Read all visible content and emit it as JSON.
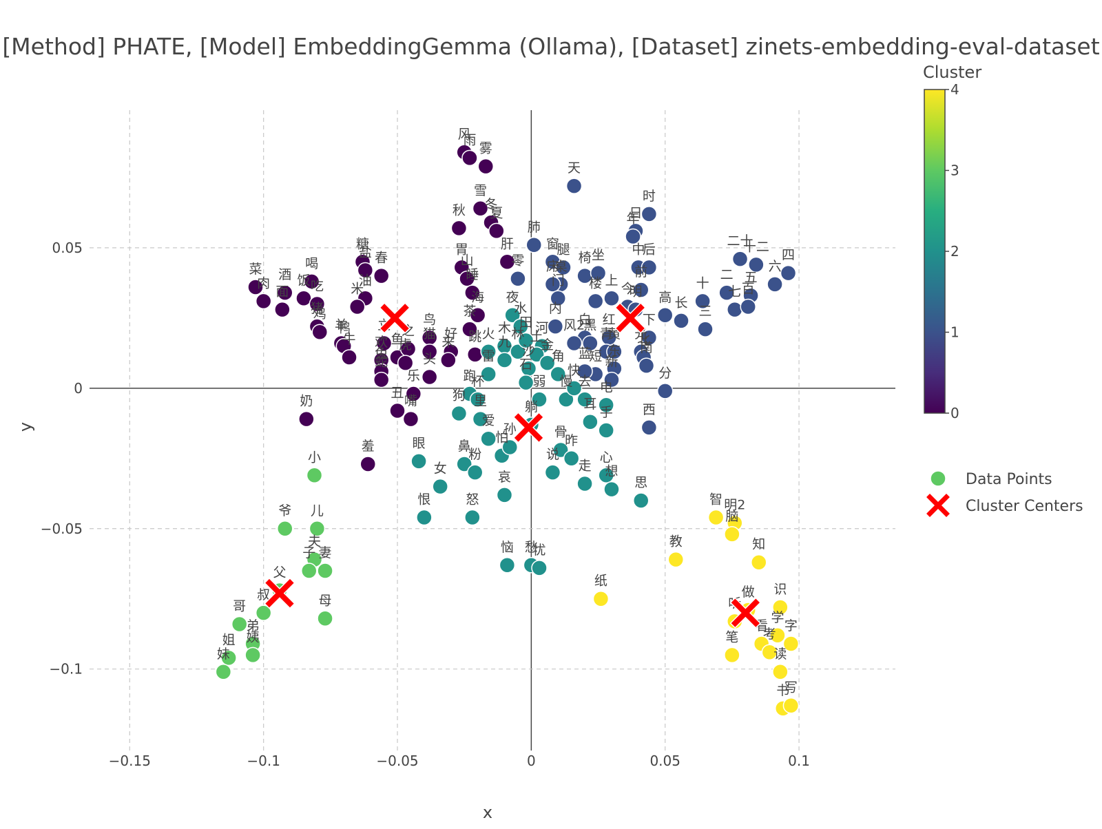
{
  "chart_data": {
    "type": "scatter",
    "title": "[Method] PHATE, [Model] EmbeddingGemma (Ollama), [Dataset] zinets-embedding-eval-dataset",
    "xlabel": "x",
    "ylabel": "y",
    "xlim": [
      -0.165,
      0.136
    ],
    "ylim": [
      -0.129,
      0.099
    ],
    "x_ticks": [
      -0.15,
      -0.1,
      -0.05,
      0,
      0.05,
      0.1
    ],
    "x_tick_labels": [
      "−0.15",
      "−0.1",
      "−0.05",
      "0",
      "0.05",
      "0.1"
    ],
    "y_ticks": [
      -0.1,
      -0.05,
      0,
      0.05
    ],
    "y_tick_labels": [
      "−0.1",
      "−0.05",
      "0",
      "0.05"
    ],
    "grid": true,
    "colorbar": {
      "title": "Cluster",
      "min": 0,
      "max": 4,
      "ticks": [
        0,
        1,
        2,
        3,
        4
      ],
      "tick_labels": [
        "0",
        "1",
        "2",
        "3",
        "4"
      ],
      "colorscale": [
        "#440154",
        "#3b528b",
        "#21918c",
        "#5ec962",
        "#fde725"
      ]
    },
    "legend": {
      "placement": "right",
      "entries": [
        {
          "name": "Data Points",
          "color": "#5ec962",
          "marker": "circle"
        },
        {
          "name": "Cluster Centers",
          "color": "#ff0000",
          "marker": "x"
        }
      ]
    },
    "centers": [
      {
        "cluster": 0,
        "x": -0.051,
        "y": 0.025
      },
      {
        "cluster": 1,
        "x": 0.037,
        "y": 0.025
      },
      {
        "cluster": 2,
        "x": -0.001,
        "y": -0.014
      },
      {
        "cluster": 3,
        "x": -0.094,
        "y": -0.073
      },
      {
        "cluster": 4,
        "x": 0.08,
        "y": -0.08
      }
    ],
    "points": [
      {
        "label": "风",
        "x": -0.025,
        "y": 0.084,
        "c": 0
      },
      {
        "label": "雨",
        "x": -0.023,
        "y": 0.082,
        "c": 0
      },
      {
        "label": "雾",
        "x": -0.017,
        "y": 0.079,
        "c": 0
      },
      {
        "label": "雪",
        "x": -0.019,
        "y": 0.064,
        "c": 0
      },
      {
        "label": "冬",
        "x": -0.015,
        "y": 0.059,
        "c": 0
      },
      {
        "label": "夏",
        "x": -0.013,
        "y": 0.056,
        "c": 0
      },
      {
        "label": "秋",
        "x": -0.027,
        "y": 0.057,
        "c": 0
      },
      {
        "label": "胃",
        "x": -0.026,
        "y": 0.043,
        "c": 0
      },
      {
        "label": "山",
        "x": -0.024,
        "y": 0.039,
        "c": 0
      },
      {
        "label": "睡",
        "x": -0.022,
        "y": 0.034,
        "c": 0
      },
      {
        "label": "海",
        "x": -0.02,
        "y": 0.026,
        "c": 0
      },
      {
        "label": "茶",
        "x": -0.023,
        "y": 0.021,
        "c": 0
      },
      {
        "label": "肝",
        "x": -0.009,
        "y": 0.045,
        "c": 0
      },
      {
        "label": "糖",
        "x": -0.063,
        "y": 0.045,
        "c": 0
      },
      {
        "label": "盐",
        "x": -0.062,
        "y": 0.042,
        "c": 0
      },
      {
        "label": "油",
        "x": -0.062,
        "y": 0.032,
        "c": 0
      },
      {
        "label": "春",
        "x": -0.056,
        "y": 0.04,
        "c": 0
      },
      {
        "label": "米",
        "x": -0.065,
        "y": 0.029,
        "c": 0
      },
      {
        "label": "菜",
        "x": -0.103,
        "y": 0.036,
        "c": 0
      },
      {
        "label": "肉",
        "x": -0.1,
        "y": 0.031,
        "c": 0
      },
      {
        "label": "酒",
        "x": -0.092,
        "y": 0.034,
        "c": 0
      },
      {
        "label": "面",
        "x": -0.093,
        "y": 0.028,
        "c": 0
      },
      {
        "label": "喝",
        "x": -0.082,
        "y": 0.038,
        "c": 0
      },
      {
        "label": "饭",
        "x": -0.085,
        "y": 0.032,
        "c": 0
      },
      {
        "label": "吃",
        "x": -0.08,
        "y": 0.03,
        "c": 0
      },
      {
        "label": "猪",
        "x": -0.08,
        "y": 0.022,
        "c": 0
      },
      {
        "label": "鸡",
        "x": -0.079,
        "y": 0.02,
        "c": 0
      },
      {
        "label": "羊",
        "x": -0.071,
        "y": 0.016,
        "c": 0
      },
      {
        "label": "鸭",
        "x": -0.07,
        "y": 0.015,
        "c": 0
      },
      {
        "label": "牛",
        "x": -0.068,
        "y": 0.011,
        "c": 0
      },
      {
        "label": "鸟",
        "x": -0.038,
        "y": 0.018,
        "c": 0
      },
      {
        "label": "猫",
        "x": -0.038,
        "y": 0.013,
        "c": 0
      },
      {
        "label": "头",
        "x": -0.038,
        "y": 0.004,
        "c": 0
      },
      {
        "label": "好",
        "x": -0.03,
        "y": 0.013,
        "c": 0
      },
      {
        "label": "来",
        "x": -0.031,
        "y": 0.01,
        "c": 0
      },
      {
        "label": "跳",
        "x": -0.021,
        "y": 0.012,
        "c": 0
      },
      {
        "label": "立",
        "x": -0.055,
        "y": 0.016,
        "c": 0
      },
      {
        "label": "鱼",
        "x": -0.05,
        "y": 0.011,
        "c": 0
      },
      {
        "label": "之",
        "x": -0.046,
        "y": 0.014,
        "c": 0
      },
      {
        "label": "虎",
        "x": -0.047,
        "y": 0.009,
        "c": 0
      },
      {
        "label": "欢",
        "x": -0.056,
        "y": 0.01,
        "c": 0
      },
      {
        "label": "兔",
        "x": -0.056,
        "y": 0.006,
        "c": 0
      },
      {
        "label": "蛇",
        "x": -0.056,
        "y": 0.003,
        "c": 0
      },
      {
        "label": "乐",
        "x": -0.044,
        "y": -0.002,
        "c": 0
      },
      {
        "label": "丑",
        "x": -0.05,
        "y": -0.008,
        "c": 0
      },
      {
        "label": "嘴",
        "x": -0.045,
        "y": -0.011,
        "c": 0
      },
      {
        "label": "奶",
        "x": -0.084,
        "y": -0.011,
        "c": 0
      },
      {
        "label": "羞",
        "x": -0.061,
        "y": -0.027,
        "c": 0
      },
      {
        "label": "天",
        "x": 0.016,
        "y": 0.072,
        "c": 1
      },
      {
        "label": "时",
        "x": 0.044,
        "y": 0.062,
        "c": 1
      },
      {
        "label": "日",
        "x": 0.039,
        "y": 0.056,
        "c": 1
      },
      {
        "label": "年",
        "x": 0.038,
        "y": 0.054,
        "c": 1
      },
      {
        "label": "中",
        "x": 0.04,
        "y": 0.043,
        "c": 1
      },
      {
        "label": "后",
        "x": 0.044,
        "y": 0.043,
        "c": 1
      },
      {
        "label": "前",
        "x": 0.041,
        "y": 0.035,
        "c": 1
      },
      {
        "label": "肺",
        "x": 0.001,
        "y": 0.051,
        "c": 1
      },
      {
        "label": "窗",
        "x": 0.008,
        "y": 0.045,
        "c": 1
      },
      {
        "label": "腿",
        "x": 0.012,
        "y": 0.043,
        "c": 1
      },
      {
        "label": "椅",
        "x": 0.02,
        "y": 0.04,
        "c": 1
      },
      {
        "label": "坐",
        "x": 0.025,
        "y": 0.041,
        "c": 1
      },
      {
        "label": "桌",
        "x": 0.011,
        "y": 0.037,
        "c": 1
      },
      {
        "label": "床",
        "x": 0.008,
        "y": 0.037,
        "c": 1
      },
      {
        "label": "零",
        "x": -0.005,
        "y": 0.039,
        "c": 1
      },
      {
        "label": "楼",
        "x": 0.024,
        "y": 0.031,
        "c": 1
      },
      {
        "label": "上",
        "x": 0.03,
        "y": 0.032,
        "c": 1
      },
      {
        "label": "门",
        "x": 0.01,
        "y": 0.032,
        "c": 1
      },
      {
        "label": "内",
        "x": 0.009,
        "y": 0.022,
        "c": 1
      },
      {
        "label": "今",
        "x": 0.036,
        "y": 0.029,
        "c": 1
      },
      {
        "label": "明",
        "x": 0.039,
        "y": 0.028,
        "c": 1
      },
      {
        "label": "高",
        "x": 0.05,
        "y": 0.026,
        "c": 1
      },
      {
        "label": "长",
        "x": 0.056,
        "y": 0.024,
        "c": 1
      },
      {
        "label": "下",
        "x": 0.044,
        "y": 0.018,
        "c": 1
      },
      {
        "label": "白",
        "x": 0.02,
        "y": 0.018,
        "c": 1
      },
      {
        "label": "黑",
        "x": 0.022,
        "y": 0.016,
        "c": 1
      },
      {
        "label": "红",
        "x": 0.029,
        "y": 0.018,
        "c": 1
      },
      {
        "label": "光",
        "x": 0.041,
        "y": 0.013,
        "c": 1
      },
      {
        "label": "风2",
        "x": 0.016,
        "y": 0.016,
        "c": 1
      },
      {
        "label": "青",
        "x": 0.028,
        "y": 0.013,
        "c": 1
      },
      {
        "label": "黄",
        "x": 0.031,
        "y": 0.013,
        "c": 1
      },
      {
        "label": "北",
        "x": 0.042,
        "y": 0.011,
        "c": 1
      },
      {
        "label": "南",
        "x": 0.043,
        "y": 0.008,
        "c": 1
      },
      {
        "label": "东",
        "x": 0.031,
        "y": 0.007,
        "c": 1
      },
      {
        "label": "短",
        "x": 0.024,
        "y": 0.005,
        "c": 1
      },
      {
        "label": "新",
        "x": 0.03,
        "y": 0.003,
        "c": 1
      },
      {
        "label": "蓝",
        "x": 0.02,
        "y": 0.006,
        "c": 1
      },
      {
        "label": "分",
        "x": 0.05,
        "y": -0.001,
        "c": 1
      },
      {
        "label": "西",
        "x": 0.044,
        "y": -0.014,
        "c": 1
      },
      {
        "label": "十",
        "x": 0.064,
        "y": 0.031,
        "c": 1
      },
      {
        "label": "三",
        "x": 0.065,
        "y": 0.021,
        "c": 1
      },
      {
        "label": "二十",
        "x": 0.078,
        "y": 0.046,
        "c": 1
      },
      {
        "label": "十二",
        "x": 0.084,
        "y": 0.044,
        "c": 1
      },
      {
        "label": "六",
        "x": 0.091,
        "y": 0.037,
        "c": 1
      },
      {
        "label": "四",
        "x": 0.096,
        "y": 0.041,
        "c": 1
      },
      {
        "label": "二",
        "x": 0.073,
        "y": 0.034,
        "c": 1
      },
      {
        "label": "七",
        "x": 0.076,
        "y": 0.028,
        "c": 1
      },
      {
        "label": "五",
        "x": 0.082,
        "y": 0.033,
        "c": 1
      },
      {
        "label": "百",
        "x": 0.081,
        "y": 0.029,
        "c": 1
      },
      {
        "label": "夜",
        "x": -0.007,
        "y": 0.026,
        "c": 2
      },
      {
        "label": "水",
        "x": -0.004,
        "y": 0.022,
        "c": 2
      },
      {
        "label": "河",
        "x": 0.004,
        "y": 0.015,
        "c": 2
      },
      {
        "label": "火",
        "x": -0.016,
        "y": 0.013,
        "c": 2
      },
      {
        "label": "木",
        "x": -0.01,
        "y": 0.015,
        "c": 2
      },
      {
        "label": "九",
        "x": -0.01,
        "y": 0.01,
        "c": 2
      },
      {
        "label": "林",
        "x": -0.005,
        "y": 0.013,
        "c": 2
      },
      {
        "label": "田",
        "x": -0.002,
        "y": 0.017,
        "c": 2
      },
      {
        "label": "土",
        "x": 0.002,
        "y": 0.012,
        "c": 2
      },
      {
        "label": "金",
        "x": 0.006,
        "y": 0.009,
        "c": 2
      },
      {
        "label": "沙",
        "x": -0.001,
        "y": 0.007,
        "c": 2
      },
      {
        "label": "石",
        "x": -0.002,
        "y": 0.002,
        "c": 2
      },
      {
        "label": "角",
        "x": 0.01,
        "y": 0.005,
        "c": 2
      },
      {
        "label": "雷",
        "x": -0.016,
        "y": 0.005,
        "c": 2
      },
      {
        "label": "弱",
        "x": 0.003,
        "y": -0.004,
        "c": 2
      },
      {
        "label": "慢",
        "x": 0.013,
        "y": -0.004,
        "c": 2
      },
      {
        "label": "快",
        "x": 0.016,
        "y": 0.0,
        "c": 2
      },
      {
        "label": "跑",
        "x": -0.023,
        "y": -0.002,
        "c": 2
      },
      {
        "label": "杯",
        "x": -0.02,
        "y": -0.004,
        "c": 2
      },
      {
        "label": "狗",
        "x": -0.027,
        "y": -0.009,
        "c": 2
      },
      {
        "label": "里",
        "x": -0.019,
        "y": -0.011,
        "c": 2
      },
      {
        "label": "爱",
        "x": -0.016,
        "y": -0.018,
        "c": 2
      },
      {
        "label": "怕",
        "x": -0.011,
        "y": -0.024,
        "c": 2
      },
      {
        "label": "孙",
        "x": -0.008,
        "y": -0.021,
        "c": 2
      },
      {
        "label": "躺",
        "x": 0.0,
        "y": -0.013,
        "c": 2
      },
      {
        "label": "去",
        "x": 0.02,
        "y": -0.004,
        "c": 2
      },
      {
        "label": "电",
        "x": 0.028,
        "y": -0.006,
        "c": 2
      },
      {
        "label": "耳",
        "x": 0.022,
        "y": -0.012,
        "c": 2
      },
      {
        "label": "骨",
        "x": 0.011,
        "y": -0.022,
        "c": 2
      },
      {
        "label": "昨",
        "x": 0.015,
        "y": -0.025,
        "c": 2
      },
      {
        "label": "说",
        "x": 0.008,
        "y": -0.03,
        "c": 2
      },
      {
        "label": "走",
        "x": 0.02,
        "y": -0.034,
        "c": 2
      },
      {
        "label": "心",
        "x": 0.028,
        "y": -0.031,
        "c": 2
      },
      {
        "label": "想",
        "x": 0.03,
        "y": -0.036,
        "c": 2
      },
      {
        "label": "手",
        "x": 0.028,
        "y": -0.015,
        "c": 2
      },
      {
        "label": "思",
        "x": 0.041,
        "y": -0.04,
        "c": 2
      },
      {
        "label": "眼",
        "x": -0.042,
        "y": -0.026,
        "c": 2
      },
      {
        "label": "女",
        "x": -0.034,
        "y": -0.035,
        "c": 2
      },
      {
        "label": "鼻",
        "x": -0.025,
        "y": -0.027,
        "c": 2
      },
      {
        "label": "粉",
        "x": -0.021,
        "y": -0.03,
        "c": 2
      },
      {
        "label": "恨",
        "x": -0.04,
        "y": -0.046,
        "c": 2
      },
      {
        "label": "怒",
        "x": -0.022,
        "y": -0.046,
        "c": 2
      },
      {
        "label": "哀",
        "x": -0.01,
        "y": -0.038,
        "c": 2
      },
      {
        "label": "恼",
        "x": -0.009,
        "y": -0.063,
        "c": 2
      },
      {
        "label": "愁",
        "x": 0.0,
        "y": -0.063,
        "c": 2
      },
      {
        "label": "忧",
        "x": 0.003,
        "y": -0.064,
        "c": 2
      },
      {
        "label": "小",
        "x": -0.081,
        "y": -0.031,
        "c": 3
      },
      {
        "label": "爷",
        "x": -0.092,
        "y": -0.05,
        "c": 3
      },
      {
        "label": "儿",
        "x": -0.08,
        "y": -0.05,
        "c": 3
      },
      {
        "label": "夫",
        "x": -0.081,
        "y": -0.061,
        "c": 3
      },
      {
        "label": "子",
        "x": -0.083,
        "y": -0.065,
        "c": 3
      },
      {
        "label": "妻",
        "x": -0.077,
        "y": -0.065,
        "c": 3
      },
      {
        "label": "父",
        "x": -0.094,
        "y": -0.072,
        "c": 3
      },
      {
        "label": "叔",
        "x": -0.1,
        "y": -0.08,
        "c": 3
      },
      {
        "label": "母",
        "x": -0.077,
        "y": -0.082,
        "c": 3
      },
      {
        "label": "哥",
        "x": -0.109,
        "y": -0.084,
        "c": 3
      },
      {
        "label": "弟",
        "x": -0.104,
        "y": -0.091,
        "c": 3
      },
      {
        "label": "姨",
        "x": -0.104,
        "y": -0.095,
        "c": 3
      },
      {
        "label": "姐",
        "x": -0.113,
        "y": -0.096,
        "c": 3
      },
      {
        "label": "妹",
        "x": -0.115,
        "y": -0.101,
        "c": 3
      },
      {
        "label": "智",
        "x": 0.069,
        "y": -0.046,
        "c": 4
      },
      {
        "label": "明2",
        "x": 0.076,
        "y": -0.048,
        "c": 4
      },
      {
        "label": "脑",
        "x": 0.075,
        "y": -0.052,
        "c": 4
      },
      {
        "label": "教",
        "x": 0.054,
        "y": -0.061,
        "c": 4
      },
      {
        "label": "知",
        "x": 0.085,
        "y": -0.062,
        "c": 4
      },
      {
        "label": "纸",
        "x": 0.026,
        "y": -0.075,
        "c": 4
      },
      {
        "label": "识",
        "x": 0.093,
        "y": -0.078,
        "c": 4
      },
      {
        "label": "做",
        "x": 0.081,
        "y": -0.079,
        "c": 4
      },
      {
        "label": "听",
        "x": 0.076,
        "y": -0.083,
        "c": 4
      },
      {
        "label": "学",
        "x": 0.092,
        "y": -0.088,
        "c": 4
      },
      {
        "label": "看",
        "x": 0.086,
        "y": -0.091,
        "c": 4
      },
      {
        "label": "考",
        "x": 0.089,
        "y": -0.094,
        "c": 4
      },
      {
        "label": "字",
        "x": 0.097,
        "y": -0.091,
        "c": 4
      },
      {
        "label": "笔",
        "x": 0.075,
        "y": -0.095,
        "c": 4
      },
      {
        "label": "读",
        "x": 0.093,
        "y": -0.101,
        "c": 4
      },
      {
        "label": "书",
        "x": 0.094,
        "y": -0.114,
        "c": 4
      },
      {
        "label": "写",
        "x": 0.097,
        "y": -0.113,
        "c": 4
      }
    ]
  }
}
